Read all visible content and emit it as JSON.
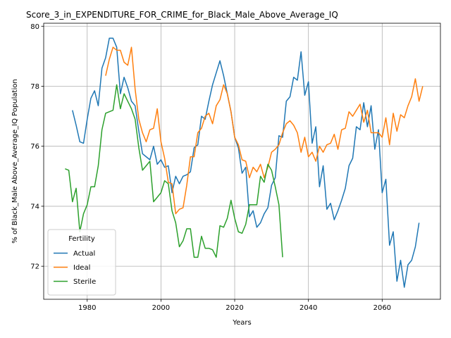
{
  "chart_data": {
    "type": "line",
    "title": "Score_3_in_EXPENDITURE_FOR_CRIME_for_Black_Male_Above_Average_IQ",
    "xlabel": "Years",
    "ylabel": "% of Black_Male Above_Average_IQ Population",
    "xlim": [
      1968.2,
      2075.8
    ],
    "ylim": [
      70.9,
      80.1
    ],
    "xticks": [
      1980,
      2000,
      2020,
      2040,
      2060
    ],
    "yticks": [
      72,
      74,
      76,
      78,
      80
    ],
    "grid": true,
    "legend": {
      "title": "Fertility",
      "placement": "lower-left"
    },
    "series": [
      {
        "name": "Actual",
        "color": "#1f77b4",
        "start_year": 1976,
        "values": [
          77.2,
          76.7,
          76.15,
          76.1,
          76.9,
          77.6,
          77.85,
          77.35,
          78.6,
          78.95,
          79.6,
          79.6,
          79.3,
          77.75,
          78.3,
          77.95,
          77.5,
          77.35,
          76.5,
          75.75,
          75.65,
          75.55,
          76.0,
          75.4,
          75.55,
          75.3,
          75.35,
          74.45,
          75.0,
          74.75,
          75.0,
          75.05,
          75.15,
          75.95,
          76.05,
          77.0,
          76.9,
          77.5,
          78.05,
          78.45,
          78.85,
          78.35,
          77.75,
          77.15,
          76.3,
          75.95,
          75.1,
          75.3,
          73.65,
          73.85,
          73.3,
          73.45,
          73.75,
          73.95,
          74.7,
          74.95,
          76.35,
          76.3,
          77.5,
          77.65,
          78.3,
          78.2,
          79.15,
          77.7,
          78.15,
          76.1,
          76.65,
          74.65,
          75.35,
          73.9,
          74.1,
          73.55,
          73.85,
          74.2,
          74.6,
          75.35,
          75.6,
          76.65,
          76.55,
          77.45,
          76.65,
          77.35,
          75.9,
          76.55,
          74.45,
          74.9,
          72.7,
          73.15,
          71.5,
          72.2,
          71.3,
          72.05,
          72.2,
          72.65,
          73.45
        ]
      },
      {
        "name": "Ideal",
        "color": "#ff7f0e",
        "start_year": 1985,
        "values": [
          78.35,
          78.9,
          79.3,
          79.2,
          79.2,
          78.8,
          78.7,
          79.3,
          77.9,
          76.9,
          76.45,
          76.15,
          76.55,
          76.6,
          77.25,
          76.15,
          75.6,
          74.8,
          74.75,
          73.75,
          73.9,
          73.95,
          74.7,
          75.65,
          75.65,
          76.45,
          76.6,
          77.0,
          77.1,
          76.75,
          77.35,
          77.55,
          78.05,
          77.75,
          77.15,
          76.3,
          76.05,
          75.55,
          75.5,
          74.95,
          75.3,
          75.15,
          75.4,
          74.95,
          75.3,
          75.8,
          75.9,
          76.05,
          76.45,
          76.75,
          76.85,
          76.7,
          76.45,
          75.8,
          76.3,
          75.65,
          75.8,
          75.5,
          76.0,
          75.8,
          76.05,
          76.1,
          76.4,
          75.9,
          76.55,
          76.6,
          77.15,
          77.0,
          77.2,
          77.4,
          76.8,
          77.2,
          76.45,
          76.45,
          76.45,
          76.3,
          76.95,
          76.05,
          77.1,
          76.5,
          77.05,
          76.95,
          77.35,
          77.65,
          78.25,
          77.5,
          78.0
        ]
      },
      {
        "name": "Sterile",
        "color": "#2ca02c",
        "start_year": 1974,
        "values": [
          75.25,
          75.2,
          74.15,
          74.6,
          73.15,
          73.75,
          74.05,
          74.65,
          74.65,
          75.35,
          76.55,
          77.1,
          77.15,
          77.2,
          78.05,
          77.25,
          77.75,
          77.5,
          77.25,
          76.9,
          75.95,
          75.2,
          75.35,
          75.5,
          74.15,
          74.3,
          74.45,
          74.85,
          74.75,
          73.85,
          73.45,
          72.65,
          72.85,
          73.25,
          73.25,
          72.3,
          72.3,
          73.0,
          72.6,
          72.6,
          72.55,
          72.3,
          73.35,
          73.3,
          73.6,
          74.2,
          73.6,
          73.15,
          73.1,
          73.4,
          74.05,
          74.05,
          74.05,
          75.0,
          74.8,
          75.4,
          75.2,
          74.65,
          74.05,
          72.3
        ]
      }
    ]
  }
}
